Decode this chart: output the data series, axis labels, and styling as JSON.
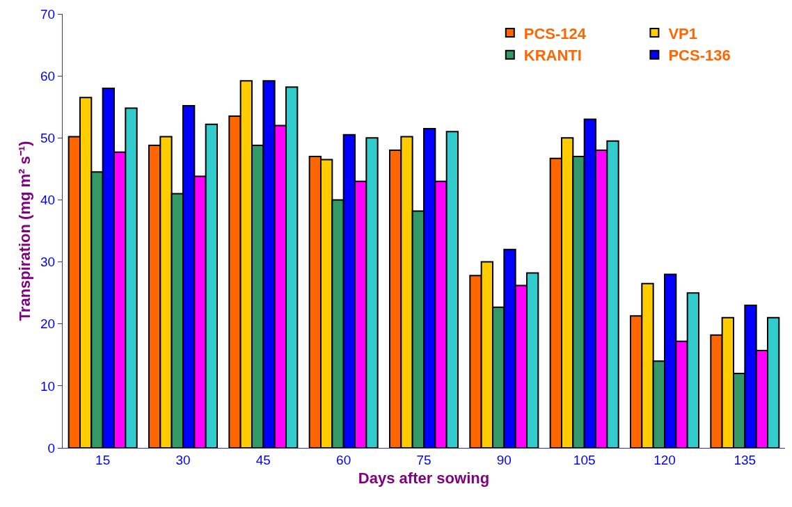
{
  "chart_data": {
    "type": "bar",
    "xlabel": "Days after sowing",
    "ylabel": "Transpiration (mg m² s⁻¹)",
    "categories": [
      "15",
      "30",
      "45",
      "60",
      "75",
      "90",
      "105",
      "120",
      "135"
    ],
    "series": [
      {
        "name": "PCS-124",
        "color": "#ff6600",
        "values": [
          50.2,
          48.8,
          53.5,
          47,
          48,
          27.8,
          46.7,
          21.3,
          18.2
        ]
      },
      {
        "name": "VP1",
        "color": "#ffcc00",
        "values": [
          56.5,
          50.2,
          59.2,
          46.5,
          50.2,
          30,
          50,
          26.5,
          21
        ]
      },
      {
        "name": "KRANTI",
        "color": "#339966",
        "values": [
          44.5,
          41,
          48.8,
          40,
          38.2,
          22.7,
          47,
          14,
          12
        ]
      },
      {
        "name": "PCS-136",
        "color": "#0000ff",
        "values": [
          58,
          55.2,
          59.2,
          50.5,
          51.5,
          32,
          53,
          28,
          23
        ]
      },
      {
        "color": "#ff00ff",
        "values": [
          47.7,
          43.8,
          52,
          43,
          43,
          26.2,
          48,
          17.2,
          15.7
        ]
      },
      {
        "color": "#33cccc",
        "values": [
          54.8,
          52.2,
          58.2,
          50,
          51,
          28.2,
          49.5,
          25,
          21
        ]
      }
    ],
    "ylim": [
      0,
      70
    ],
    "yticks": [
      0,
      10,
      20,
      30,
      40,
      50,
      60,
      70
    ],
    "legend": "top right"
  }
}
